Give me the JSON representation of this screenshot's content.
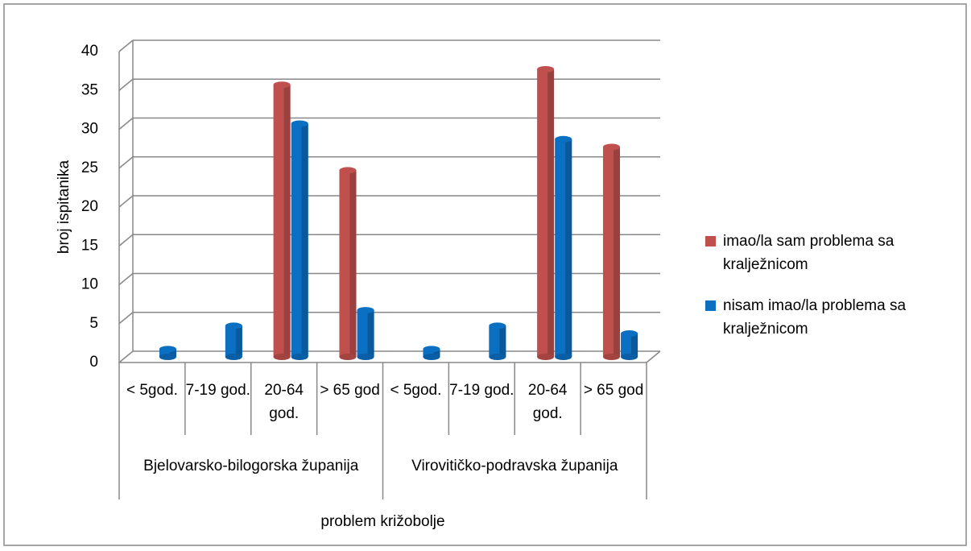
{
  "chart_data": {
    "type": "bar",
    "ylabel": "broj ispitanika",
    "xlabel": "problem križobolje",
    "groups": [
      {
        "name": "Bjelovarsko-bilogorska županija",
        "categories": [
          "< 5god.",
          "7-19 god.",
          "20-64 god.",
          "> 65 god"
        ]
      },
      {
        "name": "Virovitičko-podravska županija",
        "categories": [
          "< 5god.",
          "7-19 god.",
          "20-64 god.",
          "> 65 god"
        ]
      }
    ],
    "series": [
      {
        "name": "imao/la sam problema sa kraljеžnicom",
        "color": "#c0504d",
        "values": [
          0,
          0,
          35,
          24,
          0,
          0,
          37,
          27
        ]
      },
      {
        "name": "nisam imao/la problema sa kraljеžnicom",
        "color": "#0b6fc2",
        "values": [
          1,
          4,
          30,
          6,
          1,
          4,
          28,
          3
        ]
      }
    ],
    "ylim": [
      0,
      40
    ],
    "yticks": [
      0,
      5,
      10,
      15,
      20,
      25,
      30,
      35,
      40
    ],
    "grid": true,
    "legend": "right"
  }
}
